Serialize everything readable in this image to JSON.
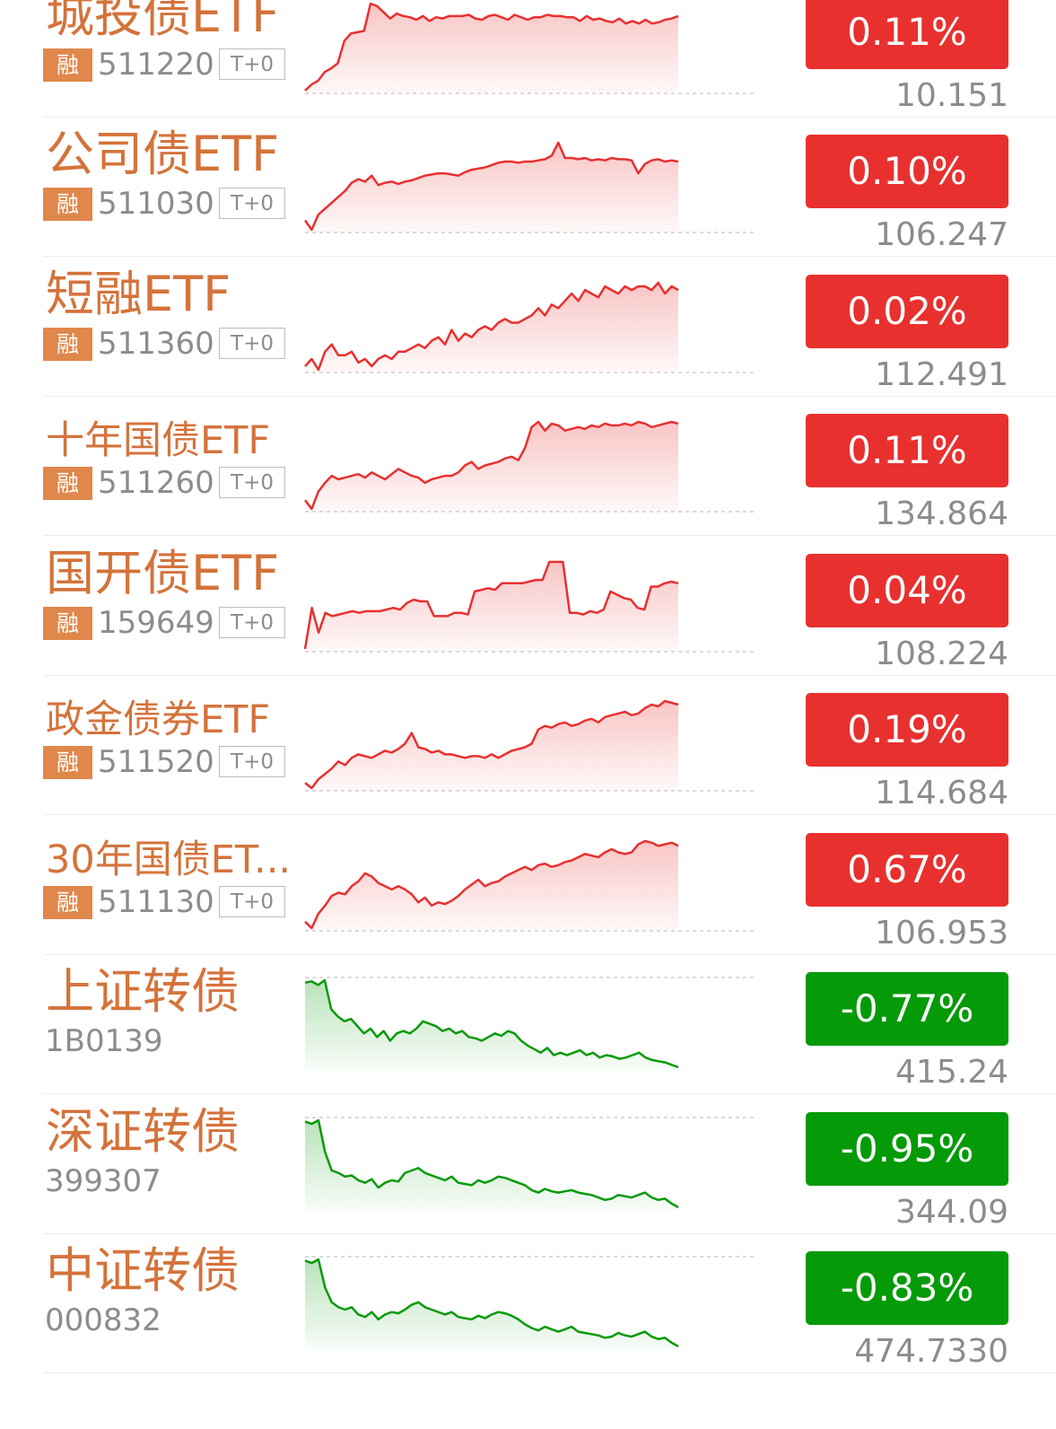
{
  "colors": {
    "up": "#e8302f",
    "down": "#059a08",
    "name": "#d4733b",
    "badge": "#e0874c",
    "muted": "#8c8c8c"
  },
  "rows": [
    {
      "name": "城投债ETF",
      "badge": "融",
      "code": "511220",
      "tag": "T+0",
      "change": "0.11%",
      "price": "10.151",
      "direction": "up",
      "series": [
        30,
        35,
        38,
        45,
        48,
        52,
        70,
        76,
        77,
        78,
        100,
        98,
        93,
        88,
        92,
        90,
        89,
        87,
        90,
        86,
        89,
        88,
        90,
        90,
        90,
        91,
        88,
        87,
        90,
        91,
        89,
        87,
        91,
        89,
        87,
        89,
        89,
        91,
        90,
        90,
        89,
        89,
        86,
        90,
        87,
        88,
        86,
        85,
        88,
        84,
        86,
        84,
        87,
        84,
        85,
        87,
        88,
        90
      ]
    },
    {
      "name": "公司债ETF",
      "badge": "融",
      "code": "511030",
      "tag": "T+0",
      "change": "0.10%",
      "price": "106.247",
      "direction": "up",
      "series": [
        30,
        22,
        35,
        40,
        45,
        50,
        55,
        62,
        65,
        63,
        68,
        60,
        62,
        63,
        61,
        63,
        64,
        66,
        68,
        69,
        70,
        70,
        69,
        68,
        71,
        73,
        74,
        75,
        77,
        79,
        80,
        80,
        79,
        80,
        80,
        81,
        82,
        85,
        96,
        83,
        83,
        82,
        83,
        81,
        82,
        81,
        83,
        82,
        82,
        81,
        70,
        78,
        81,
        82,
        80,
        81,
        80
      ]
    },
    {
      "name": "短融ETF",
      "badge": "融",
      "code": "511360",
      "tag": "T+0",
      "change": "0.02%",
      "price": "112.491",
      "direction": "up",
      "series": [
        30,
        32,
        29,
        34,
        36,
        33,
        33,
        34,
        31,
        32,
        30,
        32,
        33,
        32,
        34,
        34,
        35,
        36,
        35,
        37,
        38,
        36,
        40,
        37,
        39,
        38,
        40,
        41,
        40,
        42,
        43,
        42,
        42,
        43,
        44,
        46,
        44,
        47,
        46,
        48,
        50,
        48,
        51,
        50,
        49,
        52,
        51,
        50,
        52,
        51,
        52,
        52,
        51,
        53,
        50,
        52,
        51
      ]
    },
    {
      "name": "十年国债ETF",
      "badge": "融",
      "code": "511260",
      "tag": "T+0",
      "change": "0.11%",
      "price": "134.864",
      "direction": "up",
      "series": [
        30,
        25,
        35,
        40,
        44,
        42,
        43,
        44,
        45,
        43,
        46,
        44,
        42,
        45,
        48,
        46,
        44,
        43,
        40,
        42,
        43,
        44,
        44,
        46,
        50,
        52,
        48,
        50,
        51,
        52,
        54,
        55,
        53,
        60,
        72,
        75,
        70,
        74,
        73,
        70,
        71,
        72,
        71,
        73,
        72,
        74,
        73,
        73,
        74,
        73,
        75,
        74,
        72,
        73,
        74,
        75,
        74
      ]
    },
    {
      "name": "国开债ETF",
      "badge": "融",
      "code": "159649",
      "tag": "T+0",
      "change": "0.04%",
      "price": "108.224",
      "direction": "up",
      "series": [
        20,
        45,
        30,
        42,
        40,
        41,
        42,
        43,
        42,
        43,
        43,
        43,
        44,
        45,
        44,
        48,
        50,
        49,
        49,
        40,
        40,
        40,
        42,
        42,
        41,
        55,
        56,
        57,
        56,
        60,
        60,
        60,
        60,
        61,
        62,
        62,
        73,
        73,
        73,
        42,
        42,
        41,
        43,
        42,
        44,
        55,
        53,
        51,
        50,
        45,
        44,
        58,
        58,
        60,
        61,
        60
      ]
    },
    {
      "name": "政金债券ETF",
      "badge": "融",
      "code": "511520",
      "tag": "T+0",
      "change": "0.19%",
      "price": "114.684",
      "direction": "up",
      "series": [
        30,
        27,
        32,
        35,
        38,
        42,
        40,
        44,
        46,
        45,
        44,
        46,
        48,
        47,
        49,
        52,
        58,
        50,
        49,
        47,
        48,
        46,
        46,
        45,
        44,
        45,
        45,
        44,
        46,
        44,
        46,
        48,
        49,
        50,
        52,
        60,
        62,
        61,
        63,
        64,
        62,
        63,
        65,
        66,
        64,
        67,
        68,
        69,
        70,
        68,
        69,
        72,
        74,
        73,
        76,
        75,
        74
      ]
    },
    {
      "name": "30年国债ET...",
      "badge": "融",
      "code": "511130",
      "tag": "T+0",
      "change": "0.67%",
      "price": "106.953",
      "direction": "up",
      "series": [
        30,
        26,
        35,
        40,
        46,
        48,
        47,
        52,
        55,
        60,
        58,
        54,
        52,
        50,
        52,
        50,
        47,
        42,
        45,
        40,
        42,
        41,
        43,
        46,
        50,
        53,
        56,
        52,
        54,
        55,
        58,
        60,
        62,
        64,
        62,
        65,
        66,
        64,
        65,
        67,
        68,
        70,
        72,
        71,
        70,
        73,
        75,
        73,
        72,
        73,
        78,
        80,
        79,
        77,
        78,
        79,
        77
      ]
    },
    {
      "name": "上证转债",
      "badge": "",
      "code": "1B0139",
      "tag": "",
      "change": "-0.77%",
      "price": "415.24",
      "direction": "down",
      "series": [
        100,
        101,
        98,
        102,
        78,
        72,
        68,
        70,
        64,
        58,
        62,
        55,
        60,
        52,
        58,
        60,
        58,
        62,
        68,
        66,
        64,
        60,
        62,
        58,
        60,
        55,
        54,
        52,
        55,
        58,
        56,
        60,
        58,
        52,
        48,
        45,
        42,
        46,
        40,
        42,
        40,
        42,
        44,
        40,
        42,
        38,
        40,
        39,
        37,
        38,
        40,
        42,
        38,
        36,
        35,
        34,
        32,
        30
      ]
    },
    {
      "name": "深证转债",
      "badge": "",
      "code": "399307",
      "tag": "",
      "change": "-0.95%",
      "price": "344.09",
      "direction": "down",
      "series": [
        100,
        98,
        101,
        75,
        60,
        58,
        55,
        56,
        52,
        50,
        53,
        46,
        50,
        52,
        51,
        58,
        60,
        62,
        58,
        56,
        54,
        52,
        55,
        50,
        49,
        48,
        52,
        50,
        52,
        55,
        54,
        52,
        50,
        48,
        44,
        42,
        45,
        43,
        42,
        43,
        44,
        42,
        41,
        40,
        38,
        36,
        37,
        40,
        39,
        38,
        40,
        42,
        38,
        36,
        37,
        33,
        30
      ]
    },
    {
      "name": "中证转债",
      "badge": "",
      "code": "000832",
      "tag": "",
      "change": "-0.83%",
      "price": "474.7330",
      "direction": "down",
      "series": [
        100,
        98,
        101,
        78,
        66,
        62,
        60,
        62,
        56,
        54,
        58,
        52,
        56,
        58,
        57,
        60,
        64,
        66,
        62,
        60,
        58,
        56,
        58,
        54,
        53,
        52,
        55,
        53,
        56,
        58,
        57,
        55,
        52,
        48,
        45,
        43,
        46,
        44,
        42,
        44,
        46,
        42,
        41,
        40,
        39,
        37,
        38,
        41,
        39,
        38,
        40,
        42,
        38,
        36,
        37,
        33,
        30
      ]
    }
  ]
}
